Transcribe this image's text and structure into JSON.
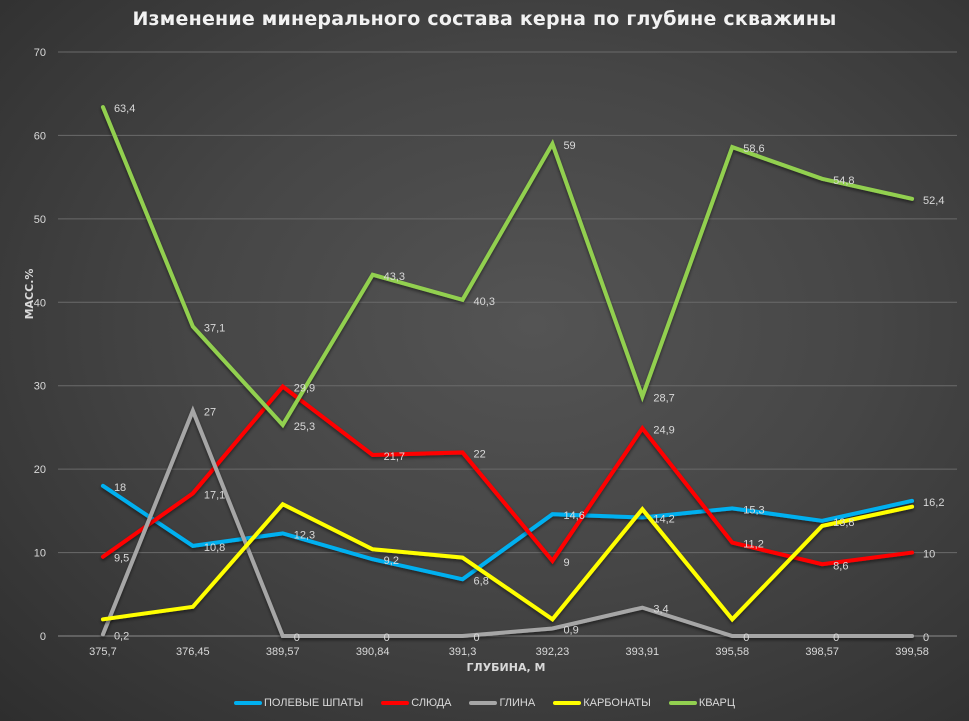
{
  "chart_data": {
    "type": "line",
    "title": "Изменение минерального состава керна по глубине скважины",
    "xlabel": "ГЛУБИНА, М",
    "ylabel": "МАСС.%",
    "ylim": [
      0,
      70
    ],
    "yticks": [
      0,
      10,
      20,
      30,
      40,
      50,
      60,
      70
    ],
    "grid": true,
    "legend_position": "bottom",
    "categories": [
      "375,7",
      "376,45",
      "389,57",
      "390,84",
      "391,3",
      "392,23",
      "393,91",
      "395,58",
      "398,57",
      "399,58"
    ],
    "series": [
      {
        "name": "ПОЛЕВЫЕ ШПАТЫ",
        "color": "#00b0f0",
        "values": [
          18,
          10.8,
          12.3,
          9.2,
          6.8,
          14.6,
          14.2,
          15.3,
          13.8,
          16.2
        ],
        "labels": [
          "18",
          "10,8",
          "12,3",
          "9,2",
          "6,8",
          "14,6",
          "14,2",
          "15,3",
          "13,8",
          "16,2"
        ]
      },
      {
        "name": "СЛЮДА",
        "color": "#ff0000",
        "values": [
          9.5,
          17.1,
          29.9,
          21.7,
          22,
          9,
          24.9,
          11.2,
          8.6,
          10
        ],
        "labels": [
          "9,5",
          "17,1",
          "29,9",
          "21,7",
          "22",
          "9",
          "24,9",
          "11,2",
          "8,6",
          "10"
        ]
      },
      {
        "name": "ГЛИНА",
        "color": "#a6a6a6",
        "values": [
          0.2,
          27,
          0,
          0,
          0,
          0.9,
          3.4,
          0,
          0,
          0
        ],
        "labels": [
          "0,2",
          "27",
          "0",
          "0",
          "0",
          "0,9",
          "3,4",
          "0",
          "0",
          "0"
        ]
      },
      {
        "name": "КАРБОНАТЫ",
        "color": "#ffff00",
        "values": [
          2.0,
          3.5,
          15.8,
          10.4,
          9.4,
          2.0,
          15.2,
          2.0,
          13.2,
          15.5
        ],
        "labels": []
      },
      {
        "name": "КВАРЦ",
        "color": "#92d050",
        "values": [
          63.4,
          37.1,
          25.3,
          43.3,
          40.3,
          59,
          28.7,
          58.6,
          54.8,
          52.4
        ],
        "labels": [
          "63,4",
          "37,1",
          "25,3",
          "43,3",
          "40,3",
          "59",
          "28,7",
          "58,6",
          "54,8",
          "52,4"
        ]
      }
    ]
  }
}
